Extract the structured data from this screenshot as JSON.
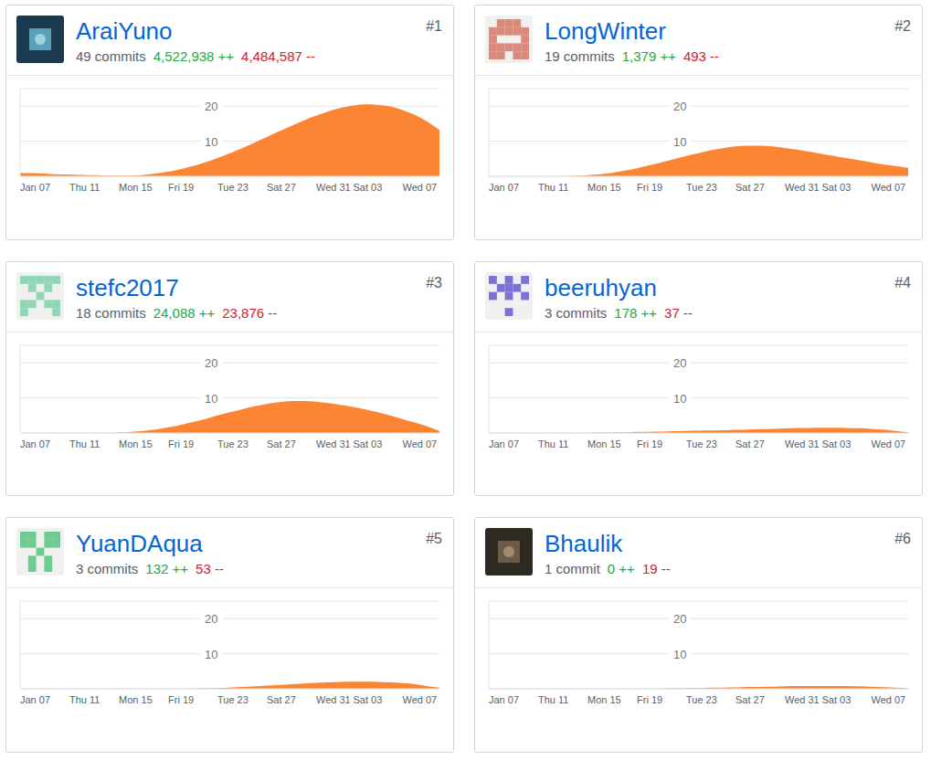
{
  "chart_data": [
    {
      "type": "area",
      "title": "AraiYuno",
      "subtitle": "49 commits",
      "annotations": [
        {
          "text": "4,522,938 ++",
          "color": "#28a745"
        },
        {
          "text": "4,484,587 --",
          "color": "#cb2431"
        },
        {
          "text": "#1",
          "color": "#586069"
        }
      ],
      "categories": [
        "Jan 07",
        null,
        null,
        null,
        "Thu 11",
        null,
        null,
        null,
        "Mon 15",
        null,
        null,
        null,
        "Fri 19",
        null,
        null,
        null,
        "Tue 23",
        null,
        null,
        null,
        "Sat 27",
        null,
        null,
        null,
        "Wed 31",
        null,
        null,
        "Sat 03",
        null,
        null,
        null,
        "Wed 07",
        null,
        null,
        null
      ],
      "values": [
        1.0,
        0.9,
        0.8,
        0.6,
        0.5,
        0.4,
        0.3,
        0.2,
        0.2,
        0.2,
        0.4,
        0.8,
        1.3,
        2.0,
        2.9,
        4.0,
        5.2,
        6.6,
        8.0,
        9.6,
        11.2,
        12.8,
        14.4,
        15.9,
        17.3,
        18.5,
        19.5,
        20.2,
        20.5,
        20.4,
        19.9,
        18.9,
        17.5,
        15.6,
        13.2
      ],
      "color": "#fb8532",
      "ylim": [
        0,
        25
      ],
      "yticks": [
        10,
        20
      ],
      "grid": true
    },
    {
      "type": "area",
      "title": "LongWinter",
      "subtitle": "19 commits",
      "annotations": [
        {
          "text": "1,379 ++",
          "color": "#28a745"
        },
        {
          "text": "493 --",
          "color": "#cb2431"
        },
        {
          "text": "#2",
          "color": "#586069"
        }
      ],
      "categories": [
        "Jan 07",
        null,
        null,
        null,
        "Thu 11",
        null,
        null,
        null,
        "Mon 15",
        null,
        null,
        null,
        "Fri 19",
        null,
        null,
        null,
        "Tue 23",
        null,
        null,
        null,
        "Sat 27",
        null,
        null,
        null,
        "Wed 31",
        null,
        null,
        "Sat 03",
        null,
        null,
        null,
        "Wed 07",
        null,
        null,
        null
      ],
      "values": [
        0,
        0,
        0,
        0,
        0,
        0,
        0,
        0.1,
        0.3,
        0.6,
        1.0,
        1.6,
        2.3,
        3.1,
        4.0,
        4.9,
        5.8,
        6.6,
        7.4,
        8.0,
        8.5,
        8.7,
        8.7,
        8.5,
        8.1,
        7.6,
        7.0,
        6.4,
        5.8,
        5.2,
        4.6,
        4.0,
        3.4,
        2.9,
        2.4
      ],
      "color": "#fb8532",
      "ylim": [
        0,
        25
      ],
      "yticks": [
        10,
        20
      ],
      "grid": true
    },
    {
      "type": "area",
      "title": "stefc2017",
      "subtitle": "18 commits",
      "annotations": [
        {
          "text": "24,088 ++",
          "color": "#28a745"
        },
        {
          "text": "23,876 --",
          "color": "#cb2431"
        },
        {
          "text": "#3",
          "color": "#586069"
        }
      ],
      "categories": [
        "Jan 07",
        null,
        null,
        null,
        "Thu 11",
        null,
        null,
        null,
        "Mon 15",
        null,
        null,
        null,
        "Fri 19",
        null,
        null,
        null,
        "Tue 23",
        null,
        null,
        null,
        "Sat 27",
        null,
        null,
        null,
        "Wed 31",
        null,
        null,
        "Sat 03",
        null,
        null,
        null,
        "Wed 07",
        null,
        null,
        null
      ],
      "values": [
        0,
        0,
        0,
        0,
        0,
        0,
        0,
        0,
        0.1,
        0.3,
        0.6,
        1.0,
        1.6,
        2.3,
        3.1,
        4.0,
        5.0,
        5.9,
        6.8,
        7.6,
        8.3,
        8.8,
        9.1,
        9.1,
        8.9,
        8.5,
        8.0,
        7.4,
        6.7,
        5.9,
        5.0,
        4.0,
        3.0,
        1.9,
        0.6
      ],
      "color": "#fb8532",
      "ylim": [
        0,
        25
      ],
      "yticks": [
        10,
        20
      ],
      "grid": true
    },
    {
      "type": "area",
      "title": "beeruhyan",
      "subtitle": "3 commits",
      "annotations": [
        {
          "text": "178 ++",
          "color": "#28a745"
        },
        {
          "text": "37 --",
          "color": "#cb2431"
        },
        {
          "text": "#4",
          "color": "#586069"
        }
      ],
      "categories": [
        "Jan 07",
        null,
        null,
        null,
        "Thu 11",
        null,
        null,
        null,
        "Mon 15",
        null,
        null,
        null,
        "Fri 19",
        null,
        null,
        null,
        "Tue 23",
        null,
        null,
        null,
        "Sat 27",
        null,
        null,
        null,
        "Wed 31",
        null,
        null,
        "Sat 03",
        null,
        null,
        null,
        "Wed 07",
        null,
        null,
        null
      ],
      "values": [
        0,
        0,
        0,
        0,
        0,
        0,
        0,
        0,
        0.05,
        0.1,
        0.15,
        0.2,
        0.3,
        0.35,
        0.4,
        0.5,
        0.6,
        0.65,
        0.7,
        0.8,
        0.9,
        1.0,
        1.1,
        1.2,
        1.3,
        1.4,
        1.45,
        1.5,
        1.5,
        1.45,
        1.35,
        1.2,
        0.95,
        0.6,
        0.2
      ],
      "color": "#fb8532",
      "ylim": [
        0,
        25
      ],
      "yticks": [
        10,
        20
      ],
      "grid": true
    },
    {
      "type": "area",
      "title": "YuanDAqua",
      "subtitle": "3 commits",
      "annotations": [
        {
          "text": "132 ++",
          "color": "#28a745"
        },
        {
          "text": "53 --",
          "color": "#cb2431"
        },
        {
          "text": "#5",
          "color": "#586069"
        }
      ],
      "categories": [
        "Jan 07",
        null,
        null,
        null,
        "Thu 11",
        null,
        null,
        null,
        "Mon 15",
        null,
        null,
        null,
        "Fri 19",
        null,
        null,
        null,
        "Tue 23",
        null,
        null,
        null,
        "Sat 27",
        null,
        null,
        null,
        "Wed 31",
        null,
        null,
        "Sat 03",
        null,
        null,
        null,
        "Wed 07",
        null,
        null,
        null
      ],
      "values": [
        0,
        0,
        0,
        0,
        0,
        0,
        0,
        0,
        0,
        0,
        0,
        0,
        0,
        0,
        0.05,
        0.1,
        0.2,
        0.35,
        0.5,
        0.7,
        0.9,
        1.1,
        1.3,
        1.5,
        1.7,
        1.85,
        1.95,
        2.0,
        2.0,
        1.95,
        1.8,
        1.6,
        1.3,
        0.8,
        0.3
      ],
      "color": "#fb8532",
      "ylim": [
        0,
        25
      ],
      "yticks": [
        10,
        20
      ],
      "grid": true
    },
    {
      "type": "area",
      "title": "Bhaulik",
      "subtitle": "1 commit",
      "annotations": [
        {
          "text": "0 ++",
          "color": "#28a745"
        },
        {
          "text": "19 --",
          "color": "#cb2431"
        },
        {
          "text": "#6",
          "color": "#586069"
        }
      ],
      "categories": [
        "Jan 07",
        null,
        null,
        null,
        "Thu 11",
        null,
        null,
        null,
        "Mon 15",
        null,
        null,
        null,
        "Fri 19",
        null,
        null,
        null,
        "Tue 23",
        null,
        null,
        null,
        "Sat 27",
        null,
        null,
        null,
        "Wed 31",
        null,
        null,
        "Sat 03",
        null,
        null,
        null,
        "Wed 07",
        null,
        null,
        null
      ],
      "values": [
        0,
        0,
        0,
        0,
        0,
        0,
        0,
        0,
        0,
        0,
        0,
        0,
        0,
        0,
        0.05,
        0.1,
        0.15,
        0.2,
        0.3,
        0.35,
        0.4,
        0.5,
        0.55,
        0.6,
        0.7,
        0.75,
        0.8,
        0.8,
        0.8,
        0.78,
        0.7,
        0.6,
        0.45,
        0.3,
        0.1
      ],
      "color": "#fb8532",
      "ylim": [
        0,
        25
      ],
      "yticks": [
        10,
        20
      ],
      "grid": true
    }
  ]
}
